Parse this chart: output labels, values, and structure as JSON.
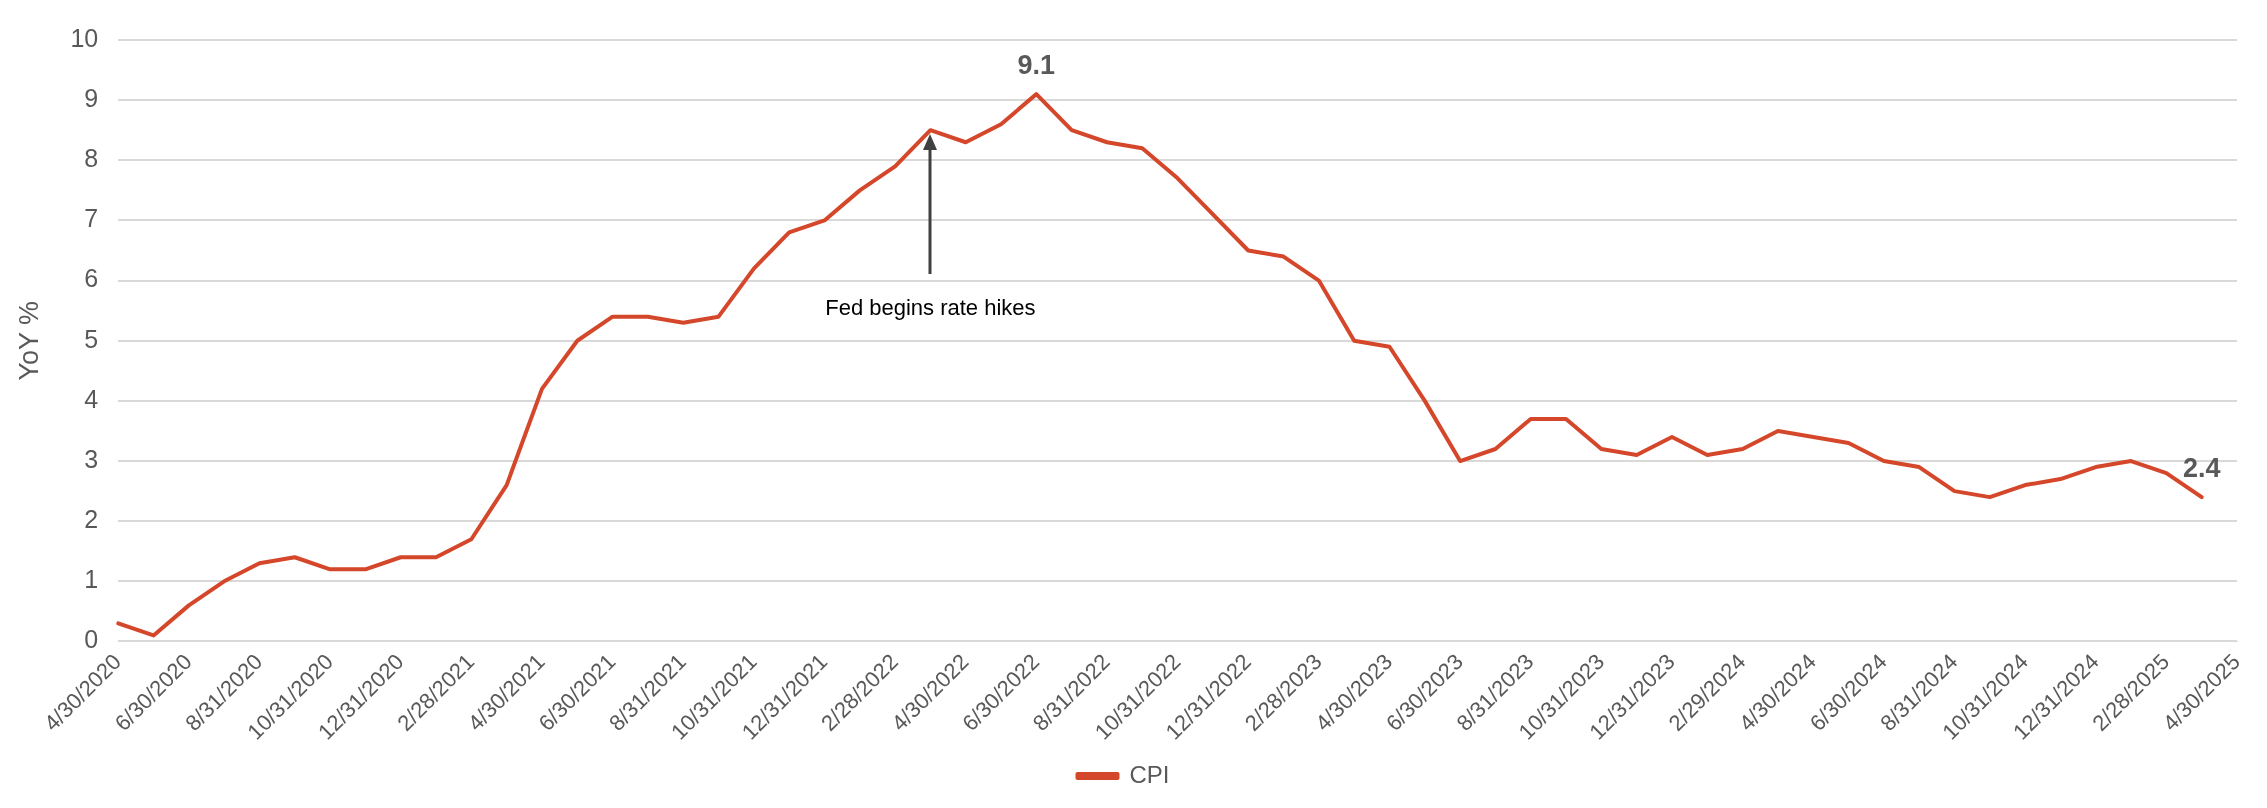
{
  "chart_data": {
    "type": "line",
    "ylabel": "YoY %",
    "legend": "bottom",
    "grid": "y",
    "marker": "none",
    "line_style": "solid",
    "categories": [
      "4/30/2020",
      null,
      "6/30/2020",
      null,
      "8/31/2020",
      null,
      "10/31/2020",
      null,
      "12/31/2020",
      null,
      "2/28/2021",
      null,
      "4/30/2021",
      null,
      "6/30/2021",
      null,
      "8/31/2021",
      null,
      "10/31/2021",
      null,
      "12/31/2021",
      null,
      "2/28/2022",
      null,
      "4/30/2022",
      null,
      "6/30/2022",
      null,
      "8/31/2022",
      null,
      "10/31/2022",
      null,
      "12/31/2022",
      null,
      "2/28/2023",
      null,
      "4/30/2023",
      null,
      "6/30/2023",
      null,
      "8/31/2023",
      null,
      "10/31/2023",
      null,
      "12/31/2023",
      null,
      "2/29/2024",
      null,
      "4/30/2024",
      null,
      "6/30/2024",
      null,
      "8/31/2024",
      null,
      "10/31/2024",
      null,
      "12/31/2024",
      null,
      "2/28/2025",
      null,
      "4/30/2025"
    ],
    "series": [
      {
        "name": "CPI",
        "color": "#d5472a",
        "values": [
          0.3,
          0.1,
          0.6,
          1.0,
          1.3,
          1.4,
          1.2,
          1.2,
          1.4,
          1.4,
          1.7,
          2.6,
          4.2,
          5.0,
          5.4,
          5.4,
          5.3,
          5.4,
          6.2,
          6.8,
          7.0,
          7.5,
          7.9,
          8.5,
          8.3,
          8.6,
          9.1,
          8.5,
          8.3,
          8.2,
          7.7,
          7.1,
          6.5,
          6.4,
          6.0,
          5.0,
          4.9,
          4.0,
          3.0,
          3.2,
          3.7,
          3.7,
          3.2,
          3.1,
          3.4,
          3.1,
          3.2,
          3.5,
          3.4,
          3.3,
          3.0,
          2.9,
          2.5,
          2.4,
          2.6,
          2.7,
          2.9,
          3.0,
          2.8,
          2.4,
          null
        ],
        "value_labels": [
          null,
          null,
          null,
          null,
          null,
          null,
          null,
          null,
          null,
          null,
          null,
          null,
          null,
          null,
          null,
          null,
          null,
          null,
          null,
          null,
          null,
          null,
          null,
          null,
          null,
          null,
          "9.1",
          null,
          null,
          null,
          null,
          null,
          null,
          null,
          null,
          null,
          null,
          null,
          null,
          null,
          null,
          null,
          null,
          null,
          null,
          null,
          null,
          null,
          null,
          null,
          null,
          null,
          null,
          null,
          null,
          null,
          null,
          null,
          null,
          "2.4",
          null
        ]
      }
    ],
    "ylim": [
      0,
      10
    ],
    "yticks": [
      0,
      1,
      2,
      3,
      4,
      5,
      6,
      7,
      8,
      9,
      10
    ],
    "annotations": [
      "Fed begins rate hikes"
    ]
  }
}
